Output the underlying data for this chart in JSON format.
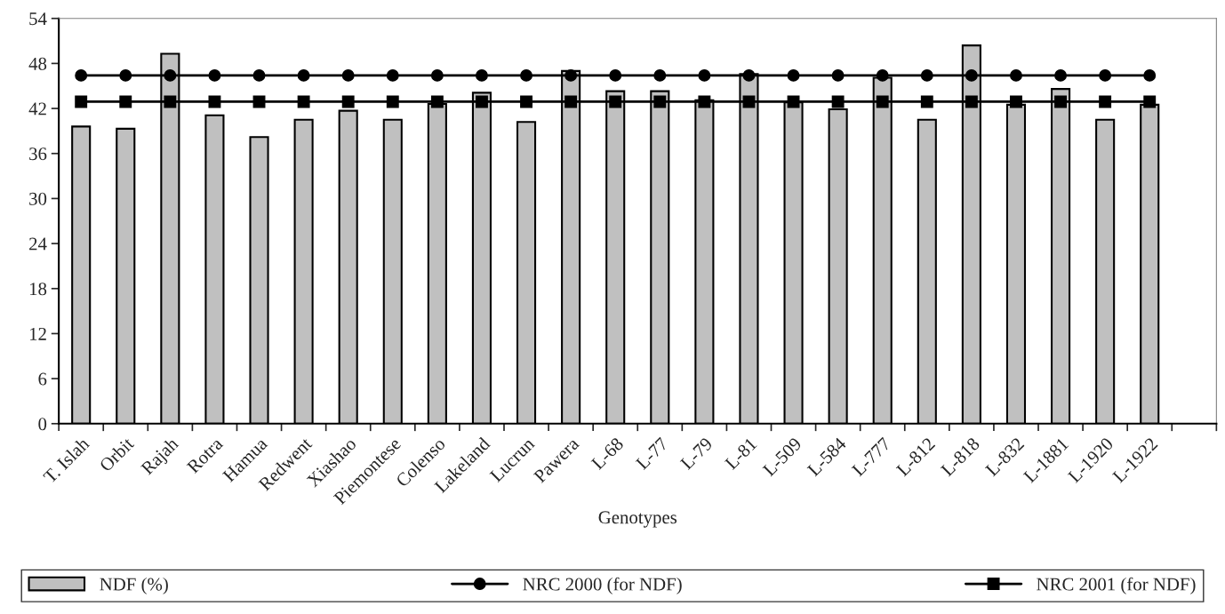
{
  "chart_data": {
    "type": "bar",
    "xlabel": "Genotypes",
    "categories": [
      "T. Islah",
      "Orbit",
      "Rajah",
      "Rotra",
      "Hamua",
      "Redwent",
      "Xiashao",
      "Piemontese",
      "Colenso",
      "Lakeland",
      "Lucrun",
      "Pawera",
      "L-68",
      "L-77",
      "L-79",
      "L-81",
      "L-509",
      "L-584",
      "L-777",
      "L-812",
      "L-818",
      "L-832",
      "L-1881",
      "L-1920",
      "L-1922",
      null
    ],
    "series": [
      {
        "name": "NDF (%)",
        "color": "#c0c0c0",
        "values": [
          39.6,
          39.3,
          49.3,
          41.1,
          38.2,
          40.5,
          41.7,
          40.5,
          42.6,
          44.1,
          40.2,
          47.0,
          44.3,
          44.3,
          43.1,
          46.6,
          42.8,
          41.9,
          46.1,
          40.5,
          50.4,
          42.5,
          44.6,
          40.5,
          42.5,
          null
        ]
      },
      {
        "name": "NRC 2000 (for NDF)",
        "type": "line",
        "marker": "circle",
        "color": "#000000",
        "values": [
          46.4,
          46.4,
          46.4,
          46.4,
          46.4,
          46.4,
          46.4,
          46.4,
          46.4,
          46.4,
          46.4,
          46.4,
          46.4,
          46.4,
          46.4,
          46.4,
          46.4,
          46.4,
          46.4,
          46.4,
          46.4,
          46.4,
          46.4,
          46.4,
          46.4,
          null
        ]
      },
      {
        "name": "NRC 2001 (for NDF)",
        "type": "line",
        "marker": "square",
        "color": "#000000",
        "values": [
          42.9,
          42.9,
          42.9,
          42.9,
          42.9,
          42.9,
          42.9,
          42.9,
          42.9,
          42.9,
          42.9,
          42.9,
          42.9,
          42.9,
          42.9,
          42.9,
          42.9,
          42.9,
          42.9,
          42.9,
          42.9,
          42.9,
          42.9,
          42.9,
          42.9,
          null
        ]
      }
    ],
    "ylim": [
      0,
      54
    ],
    "yticks": [
      0,
      6,
      12,
      18,
      24,
      30,
      36,
      42,
      48,
      54
    ],
    "grid": false,
    "legend": "bottom"
  }
}
